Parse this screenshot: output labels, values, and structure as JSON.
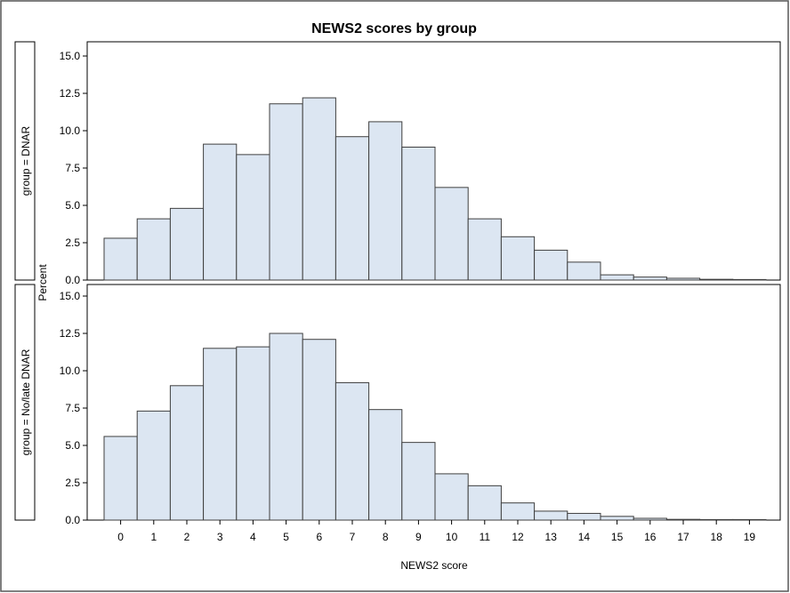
{
  "chart_data": {
    "type": "bar",
    "title": "NEWS2 scores by group",
    "xlabel": "NEWS2 score",
    "ylabel": "Percent",
    "ylim": [
      0,
      15
    ],
    "yticks": [
      "0.0",
      "2.5",
      "5.0",
      "7.5",
      "10.0",
      "12.5",
      "15.0"
    ],
    "categories": [
      "0",
      "1",
      "2",
      "3",
      "4",
      "5",
      "6",
      "7",
      "8",
      "9",
      "10",
      "11",
      "12",
      "13",
      "14",
      "15",
      "16",
      "17",
      "18",
      "19"
    ],
    "grid": false,
    "colors": {
      "bar_fill": "#dce6f2",
      "bar_stroke": "#3f3f3f",
      "frame": "#000000"
    },
    "series": [
      {
        "name": "group = DNAR",
        "values": [
          2.8,
          4.1,
          4.8,
          9.1,
          8.4,
          11.8,
          12.2,
          9.6,
          10.6,
          8.9,
          6.2,
          4.1,
          2.9,
          2.0,
          1.2,
          0.35,
          0.2,
          0.12,
          0.05,
          0.02
        ]
      },
      {
        "name": "group = No/late DNAR",
        "values": [
          5.6,
          7.3,
          9.0,
          11.5,
          11.6,
          12.5,
          12.1,
          9.2,
          7.4,
          5.2,
          3.1,
          2.3,
          1.15,
          0.6,
          0.45,
          0.25,
          0.12,
          0.05,
          0.02,
          0.01
        ]
      }
    ]
  }
}
